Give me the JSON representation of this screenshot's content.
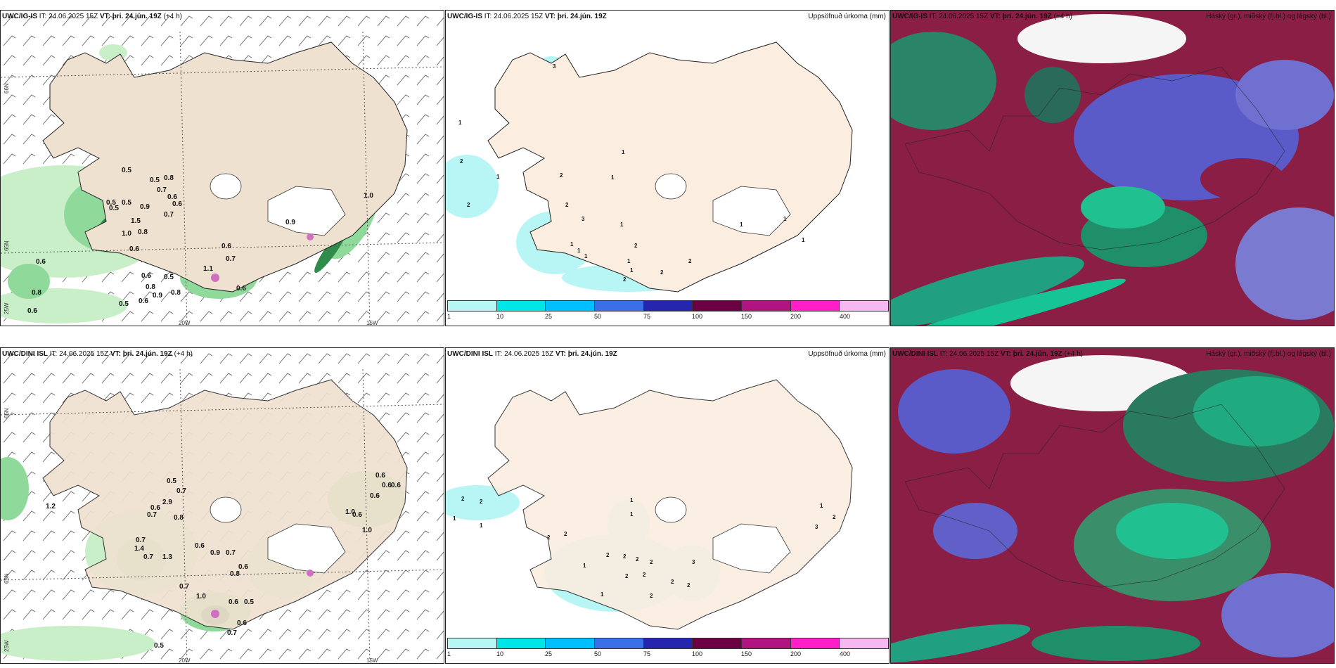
{
  "panels": [
    {
      "model": "UWC/IG-IS",
      "it_label": "IT:",
      "it": "24.06.2025 15Z",
      "vt_label": "VT:",
      "vt": "þri. 24.jún. 19Z",
      "lead": "(+4 h)",
      "title_right": ""
    },
    {
      "model": "UWC/IG-IS",
      "it_label": "IT:",
      "it": "24.06.2025 15Z",
      "vt_label": "VT:",
      "vt": "þri. 24.jún. 19Z",
      "lead": "",
      "title_right": "Uppsöfnuð úrkoma (mm)"
    },
    {
      "model": "UWC/IG-IS",
      "it_label": "IT:",
      "it": "24.06.2025 15Z",
      "vt_label": "VT:",
      "vt": "þri. 24.jún. 19Z",
      "lead": "(+4 h)",
      "title_right": "Háský (gr.), miðský (fj.bl.) og lágský (bl.)"
    },
    {
      "model": "UWC/DINI ISL",
      "it_label": "IT:",
      "it": "24.06.2025 15Z",
      "vt_label": "VT:",
      "vt": "þri. 24.jún. 19Z",
      "lead": "(+4 h)",
      "title_right": ""
    },
    {
      "model": "UWC/DINI ISL",
      "it_label": "IT:",
      "it": "24.06.2025 15Z",
      "vt_label": "VT:",
      "vt": "þri. 24.jún. 19Z",
      "lead": "",
      "title_right": "Uppsöfnuð úrkoma (mm)"
    },
    {
      "model": "UWC/DINI ISL",
      "it_label": "IT:",
      "it": "24.06.2025 15Z",
      "vt_label": "VT:",
      "vt": "þri. 24.jún. 19Z",
      "lead": "(+4 h)",
      "title_right": "Háský (gr.), miðský (fj.bl.) og lágský (bl.)"
    }
  ],
  "axes": {
    "lon_20": "20W",
    "lon_15": "15W",
    "lat_66": "66N",
    "lat_65": "65N",
    "lat_25": "25W"
  },
  "colorbar": {
    "ticks": [
      "1",
      "10",
      "25",
      "50",
      "75",
      "100",
      "150",
      "200",
      "400"
    ],
    "colors": [
      "#b8f5f5",
      "#00e5e5",
      "#00bfff",
      "#3a6fe8",
      "#2525b0",
      "#6b0043",
      "#b0157f",
      "#ff1fc8",
      "#f5b8f0"
    ]
  },
  "top_left_labels": [
    "0.5",
    "0.5",
    "0.8",
    "0.7",
    "0.6",
    "0.6",
    "0.5",
    "0.5",
    "0.9",
    "0.7",
    "0.5",
    "1.5",
    "1.0",
    "0.8",
    "0.6",
    "0.9",
    "0.6",
    "0.7",
    "1.1",
    "0.6",
    "0.6",
    "0.5",
    "0.8",
    "0.8",
    "0.6",
    "0.9",
    "0.5",
    "0.6",
    "0.8",
    "0.6",
    "1.0"
  ],
  "top_mid_labels": [
    "3",
    "1",
    "1",
    "2",
    "1",
    "2",
    "2",
    "1",
    "2",
    "3",
    "1",
    "1",
    "1",
    "1",
    "2",
    "1",
    "1",
    "2",
    "2",
    "2",
    "1",
    "1",
    "1"
  ],
  "bot_left_labels": [
    "0.5",
    "0.7",
    "2.9",
    "0.6",
    "0.7",
    "0.8",
    "0.7",
    "1.4",
    "0.7",
    "1.3",
    "0.6",
    "0.9",
    "0.7",
    "0.8",
    "0.6",
    "0.7",
    "1.0",
    "0.6",
    "0.5",
    "0.7",
    "0.6",
    "0.5",
    "0.6",
    "0.6",
    "0.6",
    "1.0",
    "0.6",
    "0.6",
    "1.0",
    "1.2"
  ],
  "bot_mid_labels": [
    "2",
    "2",
    "1",
    "1",
    "1",
    "1",
    "2",
    "2",
    "2",
    "2",
    "2",
    "2",
    "2",
    "2",
    "1",
    "3",
    "2",
    "3",
    "2",
    "2",
    "1",
    "1",
    "2"
  ]
}
